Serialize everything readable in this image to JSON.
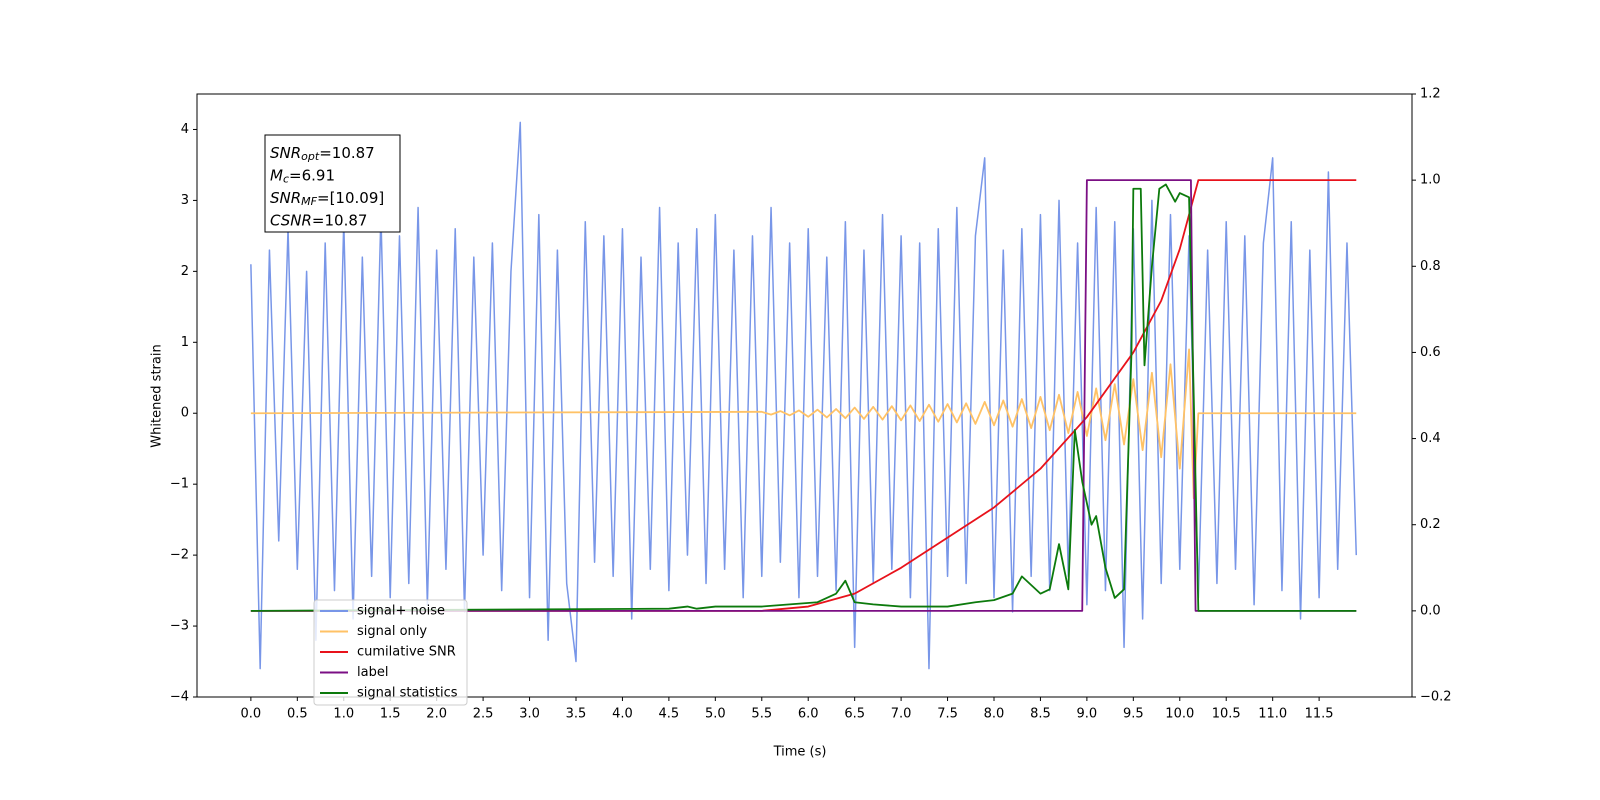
{
  "chart_data": {
    "type": "line",
    "xlabel": "Time (s)",
    "ylabel": "Whitened strain",
    "xlim": [
      -0.58,
      12.5
    ],
    "ylim": [
      -4,
      4.5
    ],
    "y2lim": [
      -0.2,
      1.2
    ],
    "xticks": [
      {
        "value": 0,
        "label": "0.0"
      },
      0.5,
      {
        "value": 1,
        "label": "1.0"
      },
      1.5,
      {
        "value": 2,
        "label": "2.0"
      },
      2.5,
      {
        "value": 3,
        "label": "3.0"
      },
      3.5,
      {
        "value": 4,
        "label": "4.0"
      },
      4.5,
      {
        "value": 5,
        "label": "5.0"
      },
      5.5,
      {
        "value": 6,
        "label": "6.0"
      },
      6.5,
      {
        "value": 7,
        "label": "7.0"
      },
      7.5,
      {
        "value": 8,
        "label": "8.0"
      },
      8.5,
      {
        "value": 9,
        "label": "9.0"
      },
      9.5,
      {
        "value": 10,
        "label": "10.0"
      },
      10.5,
      {
        "value": 11,
        "label": "11.0"
      },
      11.5
    ],
    "yticks": [
      {
        "value": -4,
        "label": "−4"
      },
      {
        "value": -3,
        "label": "−3"
      },
      {
        "value": -2,
        "label": "−2"
      },
      {
        "value": -1,
        "label": "−1"
      },
      0,
      1,
      2,
      3,
      4
    ],
    "y2ticks": [
      {
        "value": -0.2,
        "label": "−0.2"
      },
      {
        "value": 0,
        "label": "0.0"
      },
      0.2,
      0.4,
      0.6,
      0.8,
      {
        "value": 1,
        "label": "1.0"
      },
      1.2
    ],
    "legend": "lower left",
    "annotation": [
      {
        "base": "SNR",
        "sub": "opt",
        "rest": "=10.87"
      },
      {
        "base": "M",
        "sub": "c",
        "rest": "=6.91"
      },
      {
        "base": "SNR",
        "sub": "MF",
        "rest": "=[10.09]"
      },
      {
        "base": "CSNR",
        "sub": "",
        "rest": "=10.87"
      }
    ],
    "series": [
      {
        "name": "signal+ noise",
        "color": "#7896e8",
        "x": [
          0,
          0.1,
          0.2,
          0.3,
          0.4,
          0.5,
          0.6,
          0.7,
          0.8,
          0.9,
          1,
          1.1,
          1.2,
          1.3,
          1.4,
          1.5,
          1.6,
          1.7,
          1.8,
          1.9,
          2,
          2.1,
          2.2,
          2.3,
          2.4,
          2.5,
          2.6,
          2.7,
          2.8,
          2.9,
          3,
          3.1,
          3.2,
          3.3,
          3.4,
          3.5,
          3.6,
          3.7,
          3.8,
          3.9,
          4,
          4.1,
          4.2,
          4.3,
          4.4,
          4.5,
          4.6,
          4.7,
          4.8,
          4.9,
          5,
          5.1,
          5.2,
          5.3,
          5.4,
          5.5,
          5.6,
          5.7,
          5.8,
          5.9,
          6,
          6.1,
          6.2,
          6.3,
          6.4,
          6.5,
          6.6,
          6.7,
          6.8,
          6.9,
          7,
          7.1,
          7.2,
          7.3,
          7.4,
          7.5,
          7.6,
          7.7,
          7.8,
          7.9,
          8,
          8.1,
          8.2,
          8.3,
          8.4,
          8.5,
          8.6,
          8.7,
          8.8,
          8.9,
          9,
          9.1,
          9.2,
          9.3,
          9.4,
          9.5,
          9.6,
          9.7,
          9.8,
          9.9,
          10,
          10.1,
          10.2,
          10.3,
          10.4,
          10.5,
          10.6,
          10.7,
          10.8,
          10.9,
          11,
          11.1,
          11.2,
          11.3,
          11.4,
          11.5,
          11.6,
          11.7,
          11.8,
          11.9
        ],
        "values": [
          2.1,
          -3.6,
          2.3,
          -1.8,
          2.6,
          -2.2,
          2.0,
          -3.2,
          2.4,
          -2.5,
          2.7,
          -2.9,
          2.2,
          -2.3,
          2.8,
          -2.6,
          2.5,
          -2.4,
          2.9,
          -2.7,
          2.3,
          -2.2,
          2.6,
          -2.8,
          2.2,
          -2.0,
          2.4,
          -2.5,
          2.0,
          4.1,
          -2.6,
          2.8,
          -3.2,
          2.3,
          -2.4,
          -3.5,
          2.7,
          -2.1,
          2.5,
          -2.3,
          2.6,
          -2.9,
          2.2,
          -2.2,
          2.9,
          -2.5,
          2.4,
          -2.0,
          2.6,
          -2.4,
          2.8,
          -2.2,
          2.3,
          -2.6,
          2.5,
          -2.3,
          2.9,
          -2.1,
          2.4,
          -2.6,
          2.6,
          -2.3,
          2.2,
          -2.5,
          2.7,
          -3.3,
          2.3,
          -2.4,
          2.8,
          -2.2,
          2.5,
          -2.6,
          2.4,
          -3.6,
          2.6,
          -2.3,
          2.9,
          -2.4,
          2.5,
          3.6,
          -2.6,
          2.3,
          -2.8,
          2.6,
          -2.3,
          2.8,
          -2.5,
          3.0,
          -2.3,
          2.4,
          -2.7,
          2.9,
          -2.5,
          2.7,
          -3.3,
          2.6,
          -2.9,
          3.0,
          -2.4,
          2.8,
          -2.2,
          2.5,
          -2.6,
          2.3,
          -2.4,
          2.7,
          -2.2,
          2.5,
          -2.7,
          2.4,
          3.6,
          -2.5,
          2.7,
          -2.9,
          2.3,
          -2.6,
          3.4,
          -2.2,
          2.4,
          -2.0
        ]
      },
      {
        "name": "signal only",
        "color": "#ffc266",
        "x": [
          0,
          5.5,
          5.6,
          5.7,
          5.8,
          5.9,
          6,
          6.1,
          6.2,
          6.3,
          6.4,
          6.5,
          6.6,
          6.7,
          6.8,
          6.9,
          7,
          7.1,
          7.2,
          7.3,
          7.4,
          7.5,
          7.6,
          7.7,
          7.8,
          7.9,
          8,
          8.1,
          8.2,
          8.3,
          8.4,
          8.5,
          8.6,
          8.7,
          8.8,
          8.9,
          9,
          9.1,
          9.2,
          9.3,
          9.4,
          9.5,
          9.6,
          9.7,
          9.8,
          9.9,
          10,
          10.1,
          10.15,
          10.2,
          11.9
        ],
        "values": [
          0,
          0.02,
          -0.02,
          0.03,
          -0.03,
          0.04,
          -0.05,
          0.05,
          -0.06,
          0.06,
          -0.07,
          0.08,
          -0.08,
          0.09,
          -0.09,
          0.1,
          -0.1,
          0.11,
          -0.11,
          0.12,
          -0.12,
          0.13,
          -0.13,
          0.14,
          -0.15,
          0.16,
          -0.17,
          0.18,
          -0.19,
          0.2,
          -0.21,
          0.23,
          -0.24,
          0.26,
          -0.28,
          0.3,
          -0.32,
          0.35,
          -0.38,
          0.41,
          -0.44,
          0.48,
          -0.52,
          0.57,
          -0.62,
          0.69,
          -0.78,
          0.9,
          -1.2,
          0,
          0
        ]
      },
      {
        "name": "cumilative SNR",
        "color": "#e8121b",
        "axis": "y2",
        "x": [
          0,
          5.5,
          6,
          6.5,
          7,
          7.5,
          8,
          8.5,
          9,
          9.5,
          9.8,
          10,
          10.1,
          10.2,
          11.9
        ],
        "values": [
          0,
          0,
          0.01,
          0.04,
          0.1,
          0.17,
          0.24,
          0.33,
          0.45,
          0.6,
          0.72,
          0.84,
          0.92,
          1,
          1
        ]
      },
      {
        "name": "label",
        "color": "#7b0f84",
        "axis": "y2",
        "x": [
          0,
          8.95,
          9.0,
          10.12,
          10.17,
          11.9
        ],
        "values": [
          0,
          0,
          1,
          1,
          0,
          0
        ]
      },
      {
        "name": "signal statistics",
        "color": "#0c7a0c",
        "axis": "y2",
        "x": [
          0,
          4.5,
          4.7,
          4.8,
          5.0,
          5.5,
          5.8,
          6.1,
          6.3,
          6.4,
          6.5,
          6.7,
          7.0,
          7.5,
          7.8,
          8.0,
          8.2,
          8.3,
          8.5,
          8.6,
          8.7,
          8.8,
          8.87,
          8.95,
          9.05,
          9.1,
          9.2,
          9.3,
          9.4,
          9.48,
          9.5,
          9.58,
          9.62,
          9.7,
          9.78,
          9.85,
          9.95,
          10.0,
          10.1,
          10.15,
          10.2,
          11.9
        ],
        "values": [
          0,
          0.005,
          0.01,
          0.005,
          0.01,
          0.01,
          0.015,
          0.02,
          0.04,
          0.07,
          0.02,
          0.015,
          0.01,
          0.01,
          0.02,
          0.025,
          0.04,
          0.08,
          0.04,
          0.05,
          0.155,
          0.05,
          0.42,
          0.3,
          0.2,
          0.22,
          0.1,
          0.03,
          0.05,
          0.6,
          0.98,
          0.98,
          0.57,
          0.8,
          0.98,
          0.99,
          0.95,
          0.97,
          0.96,
          0.5,
          0,
          0
        ]
      }
    ]
  }
}
